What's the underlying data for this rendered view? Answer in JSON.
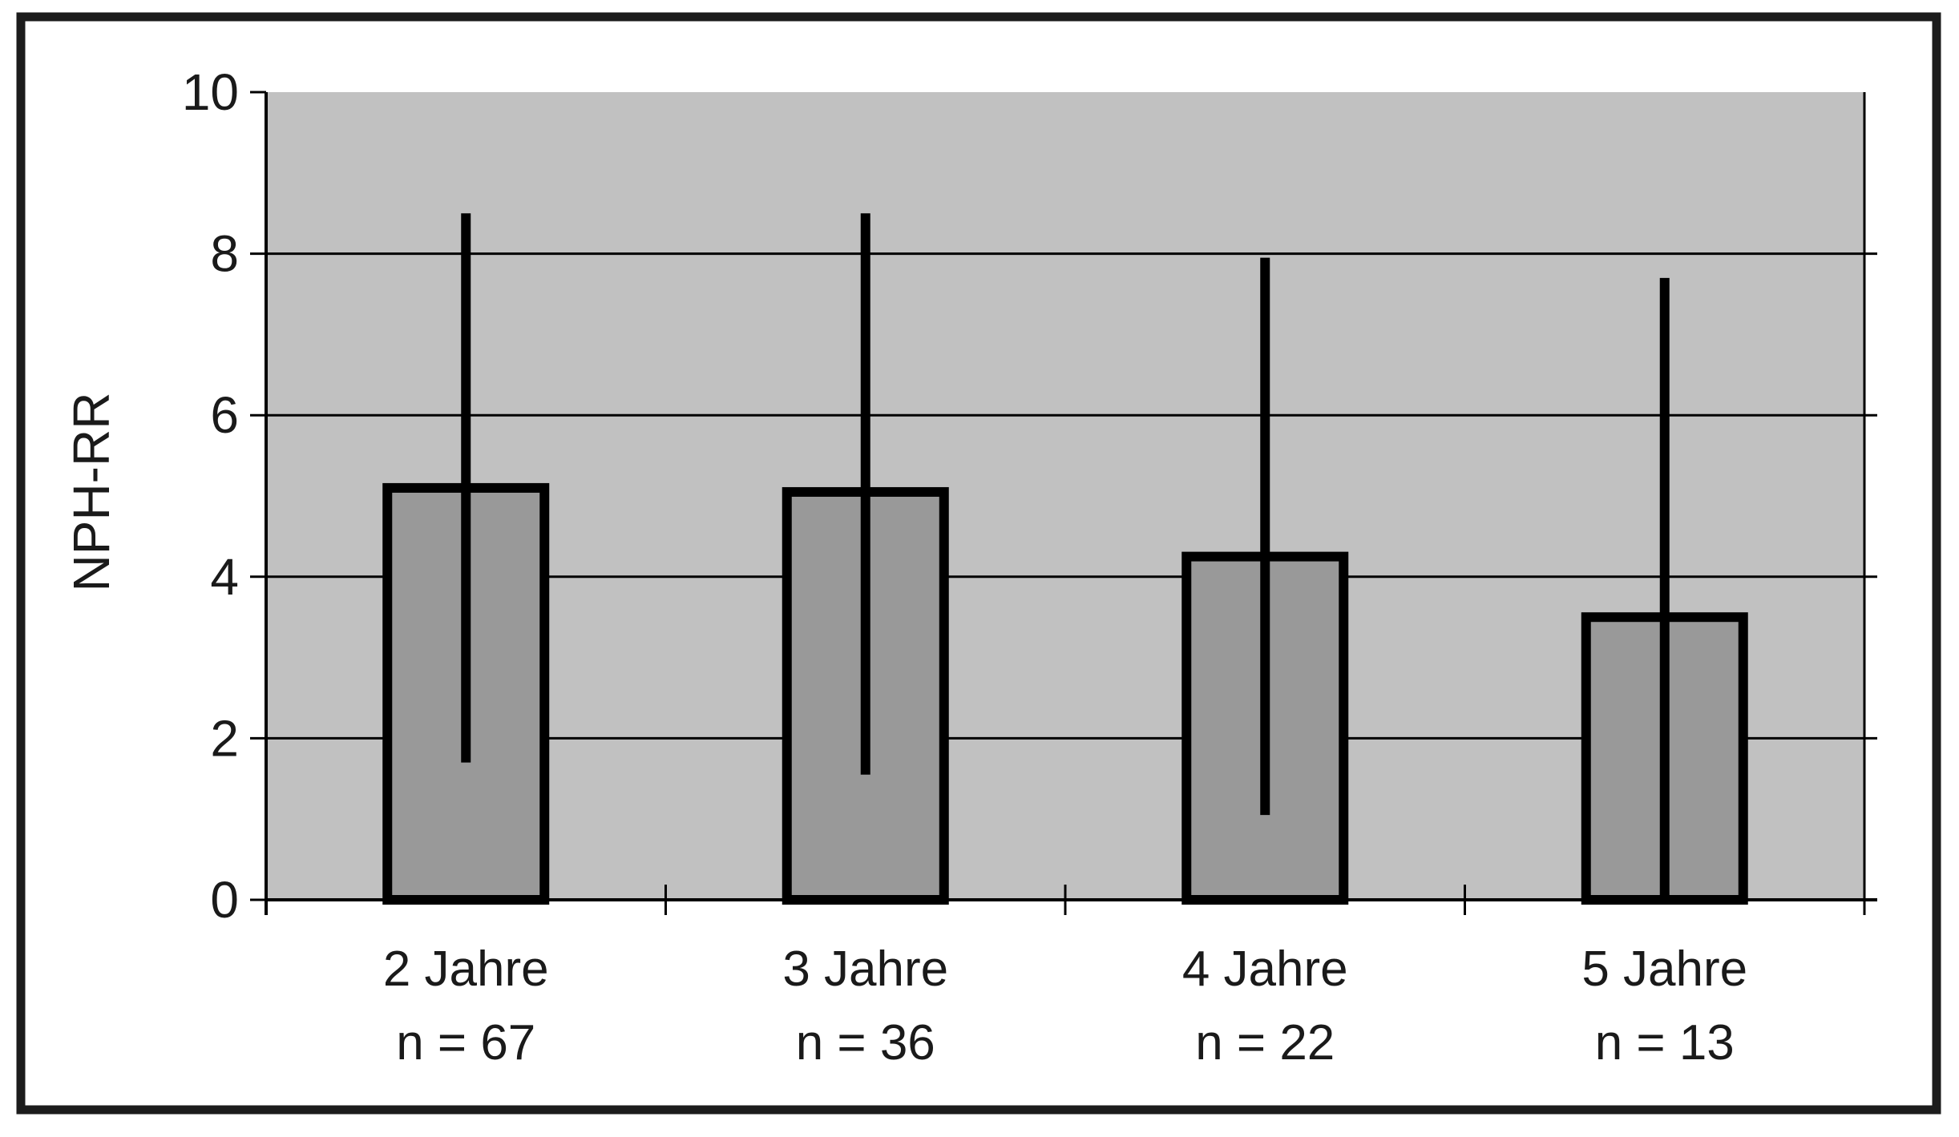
{
  "chart_data": {
    "type": "bar",
    "title": "",
    "xlabel": "",
    "ylabel": "NPH-RR",
    "categories": [
      {
        "label": "2 Jahre",
        "n_label": "n = 67"
      },
      {
        "label": "3 Jahre",
        "n_label": "n = 36"
      },
      {
        "label": "4 Jahre",
        "n_label": "n = 22"
      },
      {
        "label": "5 Jahre",
        "n_label": "n = 13"
      }
    ],
    "series": [
      {
        "name": "NPH-RR",
        "values": [
          5.1,
          5.05,
          4.25,
          3.5
        ],
        "error_high": [
          8.5,
          8.5,
          7.95,
          7.7
        ],
        "error_low": [
          1.7,
          1.55,
          1.05,
          0
        ]
      }
    ],
    "ylim": [
      0,
      10
    ],
    "yticks": [
      0,
      2,
      4,
      6,
      8,
      10
    ],
    "grid": true,
    "legend": "none",
    "colors": {
      "plot_background": "#c1c1c1",
      "bar_fill": "#999999",
      "line": "#000000",
      "frame": "#1c1c1c",
      "page_background": "#ffffff"
    }
  }
}
